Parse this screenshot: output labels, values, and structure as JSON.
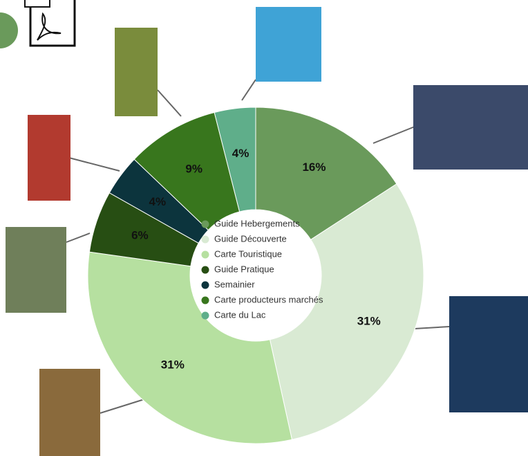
{
  "chart_data": {
    "type": "donut",
    "categories": [
      "Guide Hebergements",
      "Guide Découverte",
      "Carte Touristique",
      "Guide Pratique",
      "Semainier",
      "Carte producteurs marchés",
      "Carte du Lac"
    ],
    "values": [
      16,
      31,
      31,
      6,
      4,
      9,
      4
    ],
    "value_labels": [
      "16%",
      "31%",
      "31%",
      "6%",
      "4%",
      "9%",
      "4%"
    ],
    "colors": [
      "#6a9a5b",
      "#d9ead3",
      "#b6e0a0",
      "#274e13",
      "#0c343d",
      "#38761d",
      "#5fae8a"
    ],
    "legend": "center"
  }
}
